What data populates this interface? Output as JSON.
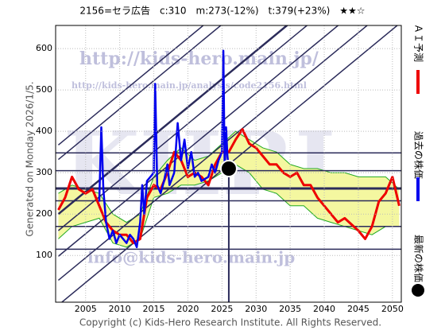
{
  "chart_data": {
    "type": "line",
    "title": "2156=セラ広告　c:310　m:273(-12%)　t:379(+23%)　★★☆",
    "left_note": "Generated on Monday 2026/1/5.",
    "footer": "Copyright (c) Kids-Hero Research Institute. All Rights Reserved.",
    "watermarks": [
      "http://kids-hero.main.jp/",
      "http://kids-hero.main.jp/analysis/code2156.html",
      "info@kids-hero.main.jp",
      "KHRI"
    ],
    "xlim": [
      2000.6,
      2051.3
    ],
    "ylim": [
      -13,
      656
    ],
    "xticks": [
      2005,
      2010,
      2015,
      2020,
      2025,
      2030,
      2035,
      2040,
      2045,
      2050
    ],
    "yticks": [
      100,
      200,
      300,
      400,
      500,
      600
    ],
    "grid": true,
    "series": [
      {
        "name": "ＡＩ予測",
        "color": "#ee0000",
        "x": [
          2001,
          2002,
          2003,
          2004,
          2005,
          2006,
          2007,
          2008,
          2009,
          2010,
          2011,
          2012,
          2013,
          2014,
          2015,
          2016,
          2017,
          2018,
          2019,
          2020,
          2021,
          2022,
          2023,
          2024,
          2025,
          2026,
          2027,
          2028,
          2029,
          2030,
          2031,
          2032,
          2033,
          2034,
          2035,
          2036,
          2037,
          2038,
          2039,
          2040,
          2041,
          2042,
          2043,
          2044,
          2045,
          2046,
          2047,
          2048,
          2049,
          2050,
          2051
        ],
        "values": [
          210,
          240,
          290,
          260,
          250,
          260,
          220,
          180,
          160,
          150,
          150,
          130,
          140,
          240,
          270,
          260,
          300,
          350,
          330,
          290,
          300,
          290,
          270,
          320,
          350,
          350,
          380,
          405,
          370,
          360,
          340,
          320,
          320,
          300,
          290,
          300,
          270,
          270,
          240,
          220,
          200,
          180,
          190,
          175,
          160,
          140,
          170,
          230,
          250,
          290,
          220
        ]
      },
      {
        "name": "過去の株価",
        "color": "#0000ee",
        "x": [
          2007.0,
          2007.3,
          2007.6,
          2008,
          2008.5,
          2009,
          2009.5,
          2010,
          2010.5,
          2011,
          2011.5,
          2012,
          2012.5,
          2013,
          2013.3,
          2013.6,
          2014,
          2014.5,
          2015,
          2015.2,
          2015.5,
          2016,
          2016.5,
          2017,
          2017.3,
          2018,
          2018.5,
          2019,
          2019.5,
          2020,
          2020.5,
          2021,
          2021.5,
          2022,
          2023,
          2023.5,
          2024,
          2024.5,
          2025,
          2025.2,
          2025.4,
          2025.6,
          2025.8,
          2026
        ],
        "values": [
          230,
          410,
          260,
          180,
          140,
          160,
          130,
          150,
          140,
          130,
          150,
          140,
          120,
          180,
          270,
          200,
          280,
          290,
          300,
          515,
          270,
          250,
          280,
          320,
          270,
          300,
          420,
          330,
          380,
          310,
          350,
          290,
          300,
          280,
          290,
          320,
          300,
          330,
          350,
          595,
          300,
          410,
          340,
          310
        ]
      }
    ],
    "current": {
      "name": "最新の株価",
      "x": 2026,
      "y": 310,
      "color": "#000000"
    },
    "band": {
      "x": [
        2001,
        2003,
        2005,
        2007,
        2009,
        2011,
        2013,
        2015,
        2017,
        2019,
        2021,
        2023,
        2025,
        2027,
        2029,
        2031,
        2033,
        2035,
        2037,
        2039,
        2041,
        2043,
        2045,
        2047,
        2049,
        2051
      ],
      "upper": [
        250,
        270,
        260,
        250,
        200,
        180,
        200,
        290,
        330,
        360,
        330,
        340,
        370,
        400,
        380,
        360,
        350,
        320,
        310,
        310,
        300,
        300,
        290,
        290,
        290,
        260
      ],
      "lower": [
        140,
        170,
        180,
        190,
        130,
        120,
        140,
        240,
        250,
        270,
        270,
        280,
        300,
        320,
        300,
        260,
        250,
        220,
        220,
        190,
        180,
        170,
        160,
        150,
        170,
        170
      ],
      "fill": "#f4f7a0",
      "color": "#22aa22"
    },
    "hlines": [
      348,
      305,
      262,
      232,
      170,
      115
    ],
    "trend_lines": [
      {
        "x": [
          2001,
          2051
        ],
        "y": [
          367,
          1047
        ]
      },
      {
        "x": [
          2001,
          2051
        ],
        "y": [
          332,
          1012
        ]
      },
      {
        "x": [
          2001,
          2051
        ],
        "y": [
          200,
          880
        ]
      },
      {
        "x": [
          2001,
          2051
        ],
        "y": [
          160,
          840
        ]
      },
      {
        "x": [
          2001,
          2051
        ],
        "y": [
          98,
          778
        ]
      },
      {
        "x": [
          2001,
          2051
        ],
        "y": [
          40,
          720
        ]
      },
      {
        "x": [
          2001,
          2051
        ],
        "y": [
          -20,
          660
        ]
      }
    ],
    "line_color": "#2b2b5a"
  }
}
